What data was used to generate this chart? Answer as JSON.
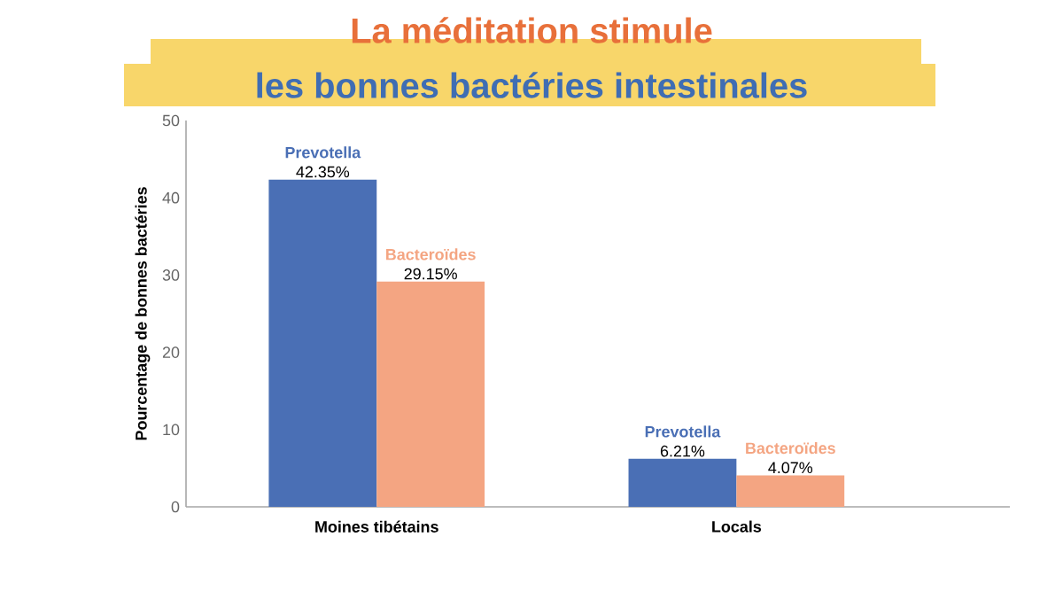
{
  "chart_data": {
    "type": "bar",
    "title": "La méditation stimule",
    "subtitle": "les bonnes bactéries intestinales",
    "ylabel": "Pourcentage de bonnes bactéries",
    "categories": [
      "Moines tibétains",
      "Locals"
    ],
    "series": [
      {
        "name": "Prevotella",
        "color": "#4a6fb5",
        "values": [
          42.35,
          6.21
        ],
        "value_labels": [
          "42.35%",
          "6.21%"
        ]
      },
      {
        "name": "Bacteroïdes",
        "color": "#f4a582",
        "values": [
          29.15,
          4.07
        ],
        "value_labels": [
          "29.15%",
          "4.07%"
        ]
      }
    ],
    "ylim": [
      0,
      50
    ],
    "yticks": [
      0,
      10,
      20,
      30,
      40,
      50
    ]
  }
}
